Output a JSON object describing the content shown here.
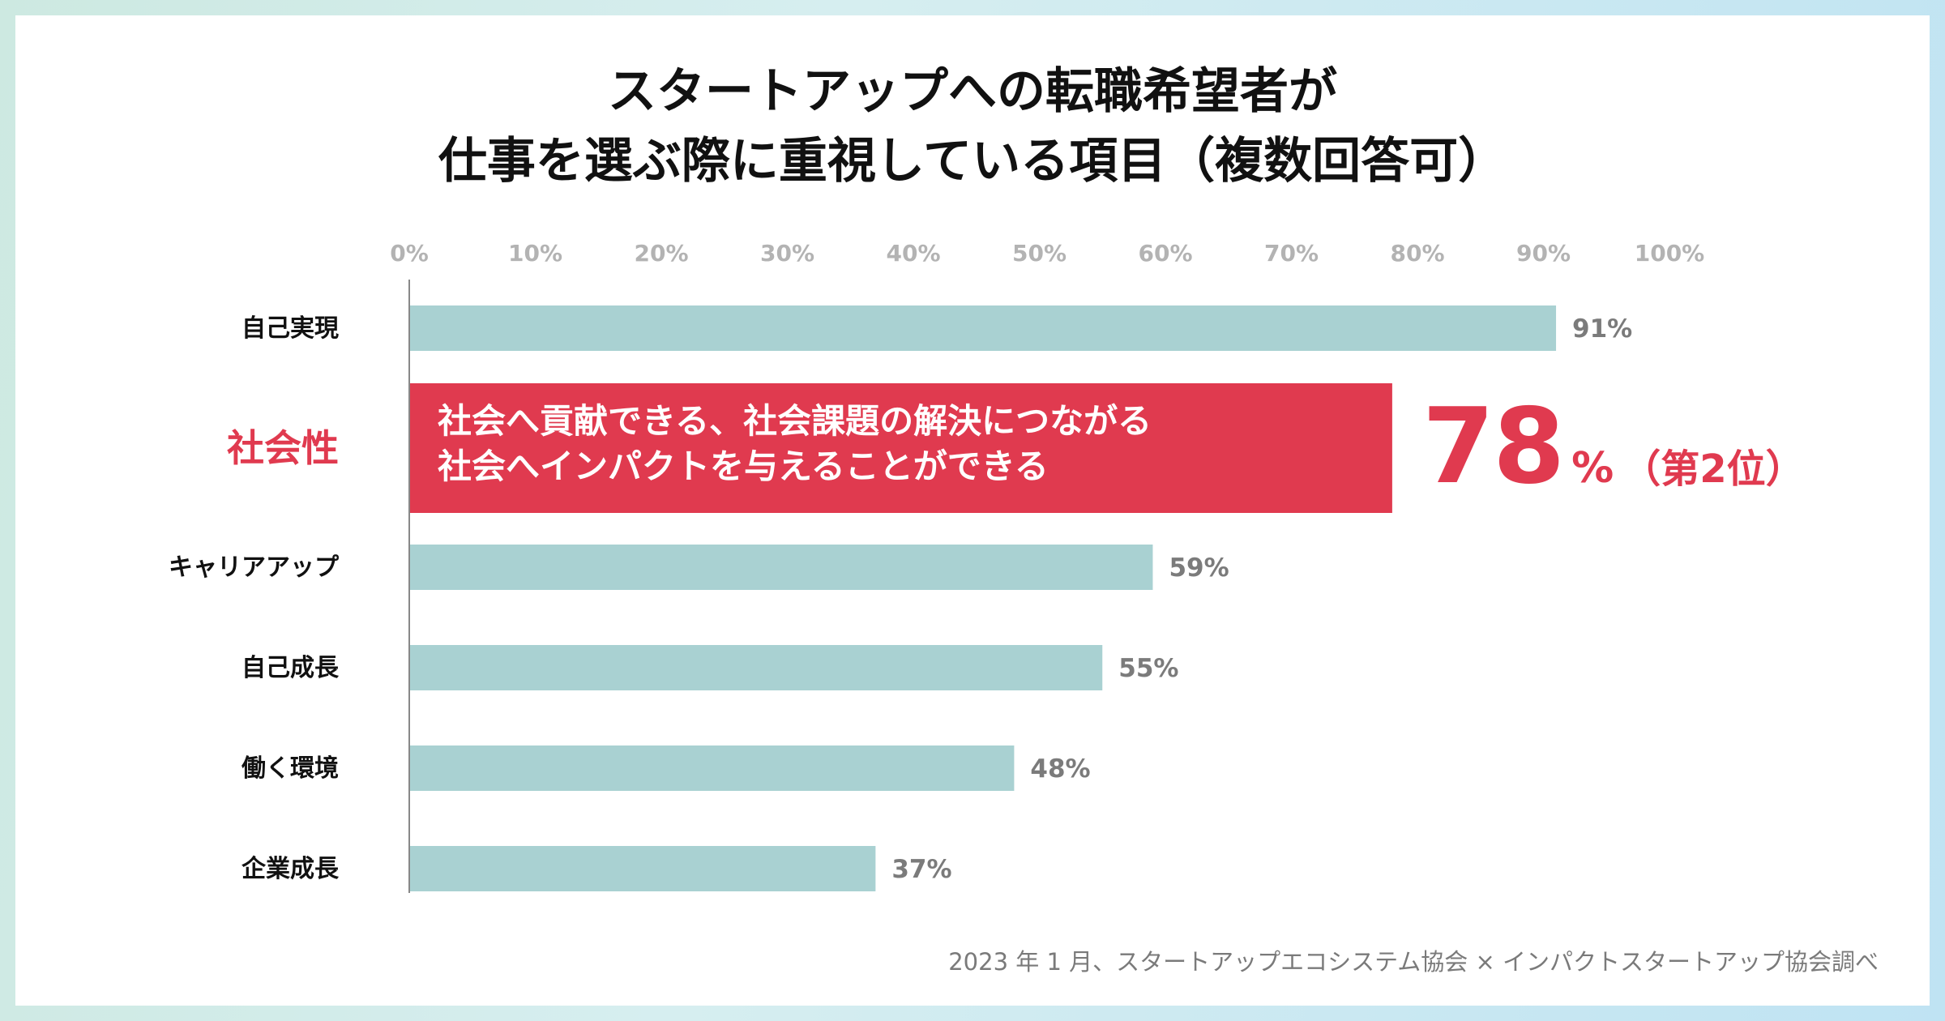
{
  "title": {
    "line1": "スタートアップへの転職希望者が",
    "line2": "仕事を選ぶ際に重視している項目（複数回答可）"
  },
  "source": "2023 年 1 月、スタートアップエコシステム協会 × インパクトスタートアップ協会調べ",
  "colors": {
    "bar": "#a9d1d2",
    "highlight": "#e03a4f",
    "axis_text": "#b3b3b3",
    "value_text": "#7b7b7b",
    "label_text": "#111111"
  },
  "chart_data": {
    "type": "bar",
    "orientation": "horizontal",
    "title": "スタートアップへの転職希望者が 仕事を選ぶ際に重視している項目（複数回答可）",
    "xlim": [
      0,
      100
    ],
    "x_ticks": [
      "0%",
      "10%",
      "20%",
      "30%",
      "40%",
      "50%",
      "60%",
      "70%",
      "80%",
      "90%",
      "100%"
    ],
    "categories": [
      "自己実現",
      "社会性",
      "キャリアアップ",
      "自己成長",
      "働く環境",
      "企業成長"
    ],
    "values": [
      91,
      78,
      59,
      55,
      48,
      37
    ],
    "value_labels": [
      "91%",
      "78",
      "59%",
      "55%",
      "48%",
      "37%"
    ],
    "highlight_index": 1
  },
  "highlight": {
    "description_line1": "社会へ貢献できる、社会課題の解決につながる",
    "description_line2": "社会へインパクトを与えることができる",
    "value": "78",
    "unit": "%",
    "rank": "（第2位）"
  }
}
